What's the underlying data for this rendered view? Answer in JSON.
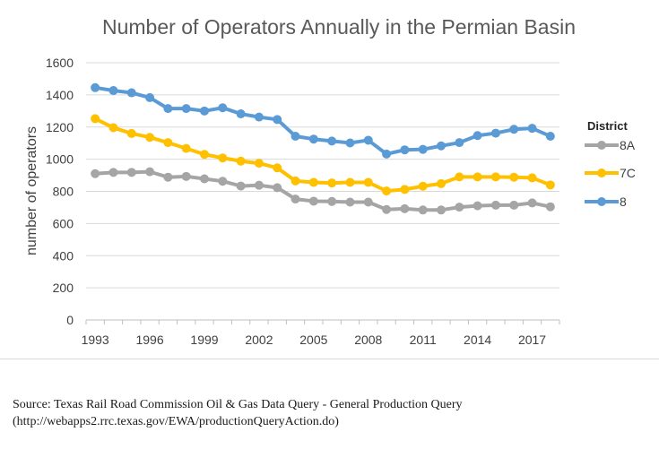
{
  "chart_data": {
    "type": "line",
    "title": "Number of Operators Annually in the Permian Basin",
    "xlabel": "",
    "ylabel": "number of operators",
    "x": [
      1993,
      1994,
      1995,
      1996,
      1997,
      1998,
      1999,
      2000,
      2001,
      2002,
      2003,
      2004,
      2005,
      2006,
      2007,
      2008,
      2009,
      2010,
      2011,
      2012,
      2013,
      2014,
      2015,
      2016,
      2017,
      2018
    ],
    "xtick_values": [
      1993,
      1996,
      1999,
      2002,
      2005,
      2008,
      2011,
      2014,
      2017
    ],
    "xtick_labels": [
      "1993",
      "1996",
      "1999",
      "2002",
      "2005",
      "2008",
      "2011",
      "2014",
      "2017"
    ],
    "ylim": [
      0,
      1600
    ],
    "ytick_values": [
      0,
      200,
      400,
      600,
      800,
      1000,
      1200,
      1400,
      1600
    ],
    "ytick_labels": [
      "0",
      "200",
      "400",
      "600",
      "800",
      "1000",
      "1200",
      "1400",
      "1600"
    ],
    "grid": true,
    "legend_title": "District",
    "legend_position": "right",
    "series": [
      {
        "name": "8A",
        "color": "#a5a5a5",
        "values": [
          910,
          918,
          918,
          922,
          888,
          893,
          878,
          863,
          833,
          838,
          823,
          752,
          739,
          737,
          733,
          733,
          687,
          692,
          684,
          684,
          702,
          710,
          714,
          714,
          728,
          704
        ]
      },
      {
        "name": "7C",
        "color": "#ffc000",
        "values": [
          1252,
          1196,
          1160,
          1136,
          1103,
          1067,
          1030,
          1008,
          988,
          975,
          946,
          865,
          856,
          852,
          856,
          856,
          802,
          812,
          832,
          848,
          890,
          890,
          890,
          888,
          884,
          840
        ]
      },
      {
        "name": "8",
        "color": "#5b9bd5",
        "values": [
          1445,
          1427,
          1413,
          1383,
          1315,
          1315,
          1300,
          1320,
          1282,
          1262,
          1247,
          1143,
          1125,
          1113,
          1101,
          1118,
          1032,
          1058,
          1061,
          1083,
          1103,
          1147,
          1162,
          1186,
          1192,
          1143
        ]
      }
    ]
  },
  "source": {
    "line1": "Source: Texas Rail Road Commission Oil & Gas Data Query - General Production Query",
    "line2": "(http://webapps2.rrc.texas.gov/EWA/productionQueryAction.do)"
  }
}
